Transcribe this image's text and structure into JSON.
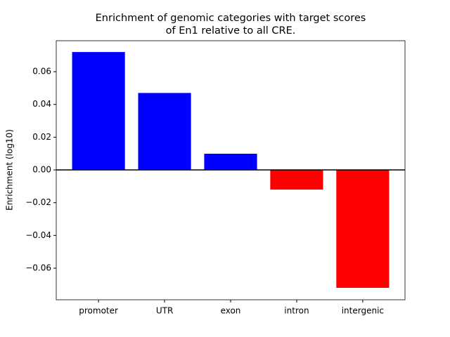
{
  "chart_data": {
    "type": "bar",
    "title": [
      "Enrichment of genomic categories with target scores",
      "of En1 relative to all CRE."
    ],
    "y_label": "Enrichment (log10)",
    "categories": [
      "promoter",
      "UTR",
      "exon",
      "intron",
      "intergenic"
    ],
    "values": [
      0.072,
      0.047,
      0.0099,
      -0.012,
      -0.072
    ],
    "colors": [
      "#0000ff",
      "#0000ff",
      "#0000ff",
      "#ff0000",
      "#ff0000"
    ],
    "ylim": [
      -0.0793,
      0.0789
    ],
    "yticks": [
      {
        "value": -0.06,
        "label": "−0.06"
      },
      {
        "value": -0.04,
        "label": "−0.04"
      },
      {
        "value": -0.02,
        "label": "−0.02"
      },
      {
        "value": 0,
        "label": "0.00"
      },
      0.02,
      0.04,
      0.06
    ],
    "axhline": 0
  }
}
